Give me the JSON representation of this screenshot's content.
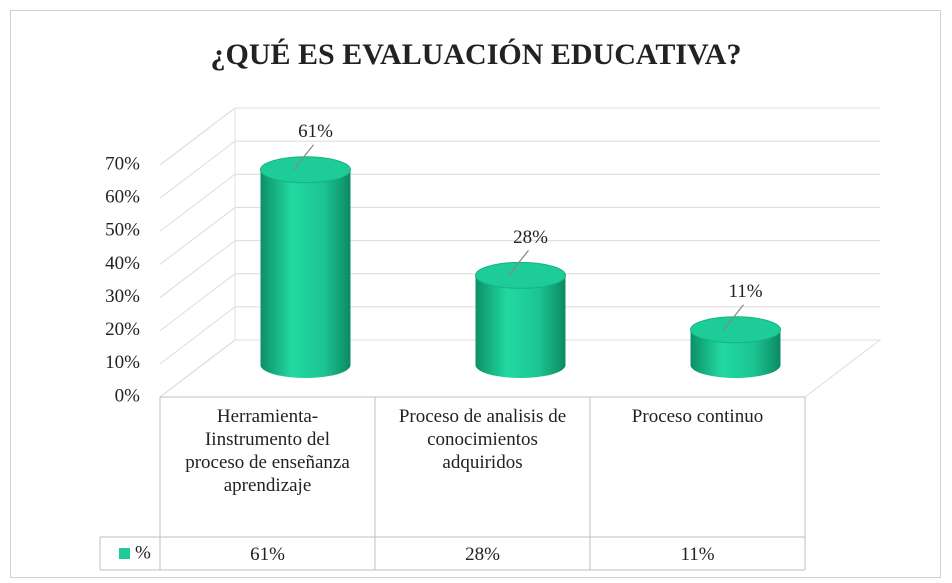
{
  "chart_data": {
    "type": "bar",
    "title": "¿QUÉ ES EVALUACIÓN EDUCATIVA?",
    "categories": [
      "Herramienta-Iinstrumento del proceso de enseñanza aprendizaje",
      "Proceso de analisis de conocimientos adquiridos",
      "Proceso continuo"
    ],
    "series": [
      {
        "name": "%",
        "color": "#1dcc96",
        "values": [
          61,
          28,
          11
        ],
        "value_labels": [
          "61%",
          "28%",
          "11%"
        ]
      }
    ],
    "ylim": [
      0,
      70
    ],
    "yticks": [
      {
        "value": 0,
        "label": "0%"
      },
      {
        "value": 10,
        "label": "10%"
      },
      {
        "value": 20,
        "label": "20%"
      },
      {
        "value": 30,
        "label": "30%"
      },
      {
        "value": 40,
        "label": "40%"
      },
      {
        "value": 50,
        "label": "50%"
      },
      {
        "value": 60,
        "label": "60%"
      },
      {
        "value": 70,
        "label": "70%"
      }
    ],
    "grid": true,
    "data_table": true
  }
}
